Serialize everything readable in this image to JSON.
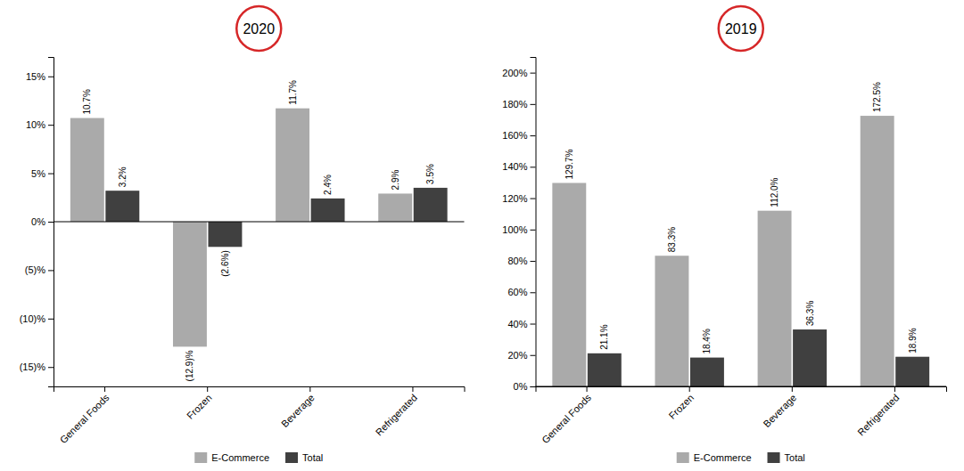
{
  "chart_data": [
    {
      "type": "bar",
      "title": "2020",
      "categories": [
        "General Foods",
        "Frozen",
        "Beverage",
        "Refrigerated"
      ],
      "series": [
        {
          "name": "E-Commerce",
          "color": "#aaaaaa",
          "values": [
            10.7,
            -12.9,
            11.7,
            2.9
          ],
          "value_labels": [
            "10.7%",
            "(12.9)%",
            "11.7%",
            "2.9%"
          ]
        },
        {
          "name": "Total",
          "color": "#404040",
          "values": [
            3.2,
            -2.6,
            2.4,
            3.5
          ],
          "value_labels": [
            "3.2%",
            "(2.6%)",
            "2.4%",
            "3.5%"
          ]
        }
      ],
      "ylim": [
        -17,
        17
      ],
      "yticks": [
        {
          "value": -15,
          "label": "(15)%"
        },
        {
          "value": -10,
          "label": "(10)%"
        },
        {
          "value": -5,
          "label": "(5)%"
        },
        {
          "value": 0,
          "label": "0%"
        },
        {
          "value": 5,
          "label": "5%"
        },
        {
          "value": 10,
          "label": "10%"
        },
        {
          "value": 15,
          "label": "15%"
        }
      ],
      "grid": false,
      "legend": "bottom",
      "data_labels": true
    },
    {
      "type": "bar",
      "title": "2019",
      "categories": [
        "General Foods",
        "Frozen",
        "Beverage",
        "Refrigerated"
      ],
      "series": [
        {
          "name": "E-Commerce",
          "color": "#aaaaaa",
          "values": [
            129.7,
            83.3,
            112.0,
            172.5
          ],
          "value_labels": [
            "129.7%",
            "83.3%",
            "112.0%",
            "172.5%"
          ]
        },
        {
          "name": "Total",
          "color": "#404040",
          "values": [
            21.1,
            18.4,
            36.3,
            18.9
          ],
          "value_labels": [
            "21.1%",
            "18.4%",
            "36.3%",
            "18.9%"
          ]
        }
      ],
      "ylim": [
        0,
        210
      ],
      "yticks": [
        {
          "value": 0,
          "label": "0%"
        },
        {
          "value": 20,
          "label": "20%"
        },
        {
          "value": 40,
          "label": "40%"
        },
        {
          "value": 60,
          "label": "60%"
        },
        {
          "value": 80,
          "label": "80%"
        },
        {
          "value": 100,
          "label": "100%"
        },
        {
          "value": 120,
          "label": "120%"
        },
        {
          "value": 140,
          "label": "140%"
        },
        {
          "value": 160,
          "label": "160%"
        },
        {
          "value": 180,
          "label": "180%"
        },
        {
          "value": 200,
          "label": "200%"
        }
      ],
      "grid": false,
      "legend": "bottom",
      "data_labels": true
    }
  ]
}
